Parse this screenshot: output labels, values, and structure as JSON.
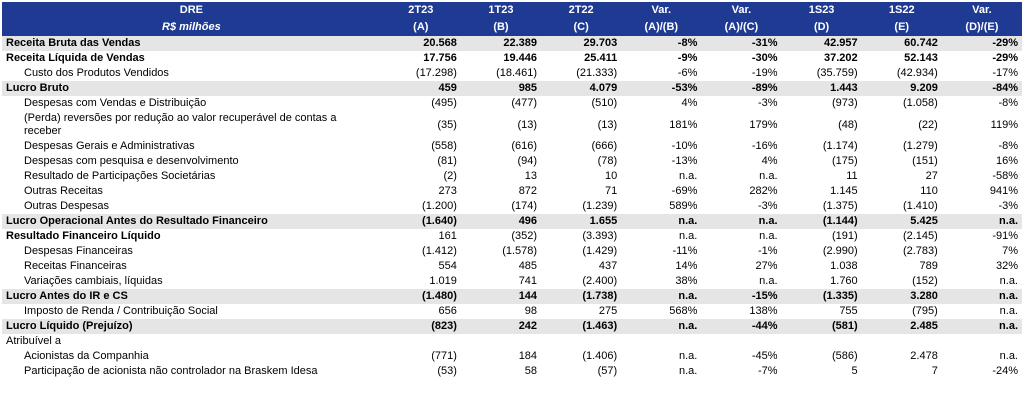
{
  "header": {
    "row1": [
      "DRE",
      "2T23",
      "1T23",
      "2T22",
      "Var.",
      "Var.",
      "1S23",
      "1S22",
      "Var."
    ],
    "row2": [
      "R$ milhões",
      "(A)",
      "(B)",
      "(C)",
      "(A)/(B)",
      "(A)/(C)",
      "(D)",
      "(E)",
      "(D)/(E)"
    ]
  },
  "rows": [
    {
      "label": "Receita Bruta das Vendas",
      "v": [
        "20.568",
        "22.389",
        "29.703",
        "-8%",
        "-31%",
        "42.957",
        "60.742",
        "-29%"
      ]
    },
    {
      "label": "Receita Líquida de Vendas",
      "v": [
        "17.756",
        "19.446",
        "25.411",
        "-9%",
        "-30%",
        "37.202",
        "52.143",
        "-29%"
      ]
    },
    {
      "label": "Custo dos Produtos Vendidos",
      "v": [
        "(17.298)",
        "(18.461)",
        "(21.333)",
        "-6%",
        "-19%",
        "(35.759)",
        "(42.934)",
        "-17%"
      ]
    },
    {
      "label": "Lucro Bruto",
      "v": [
        "459",
        "985",
        "4.079",
        "-53%",
        "-89%",
        "1.443",
        "9.209",
        "-84%"
      ]
    },
    {
      "label": "Despesas com Vendas e Distribuição",
      "v": [
        "(495)",
        "(477)",
        "(510)",
        "4%",
        "-3%",
        "(973)",
        "(1.058)",
        "-8%"
      ]
    },
    {
      "label": "(Perda) reversões por redução ao valor recuperável de contas a receber",
      "v": [
        "(35)",
        "(13)",
        "(13)",
        "181%",
        "179%",
        "(48)",
        "(22)",
        "119%"
      ]
    },
    {
      "label": "Despesas Gerais e Administrativas",
      "v": [
        "(558)",
        "(616)",
        "(666)",
        "-10%",
        "-16%",
        "(1.174)",
        "(1.279)",
        "-8%"
      ]
    },
    {
      "label": "Despesas com pesquisa e desenvolvimento",
      "v": [
        "(81)",
        "(94)",
        "(78)",
        "-13%",
        "4%",
        "(175)",
        "(151)",
        "16%"
      ]
    },
    {
      "label": "Resultado de Participações Societárias",
      "v": [
        "(2)",
        "13",
        "10",
        "n.a.",
        "n.a.",
        "11",
        "27",
        "-58%"
      ]
    },
    {
      "label": "Outras Receitas",
      "v": [
        "273",
        "872",
        "71",
        "-69%",
        "282%",
        "1.145",
        "110",
        "941%"
      ]
    },
    {
      "label": "Outras Despesas",
      "v": [
        "(1.200)",
        "(174)",
        "(1.239)",
        "589%",
        "-3%",
        "(1.375)",
        "(1.410)",
        "-3%"
      ]
    },
    {
      "label": "Lucro Operacional Antes do Resultado Financeiro",
      "v": [
        "(1.640)",
        "496",
        "1.655",
        "n.a.",
        "n.a.",
        "(1.144)",
        "5.425",
        "n.a."
      ]
    },
    {
      "label": "Resultado Financeiro Líquido",
      "v": [
        "161",
        "(352)",
        "(3.393)",
        "n.a.",
        "n.a.",
        "(191)",
        "(2.145)",
        "-91%"
      ]
    },
    {
      "label": "Despesas Financeiras",
      "v": [
        "(1.412)",
        "(1.578)",
        "(1.429)",
        "-11%",
        "-1%",
        "(2.990)",
        "(2.783)",
        "7%"
      ]
    },
    {
      "label": "Receitas Financeiras",
      "v": [
        "554",
        "485",
        "437",
        "14%",
        "27%",
        "1.038",
        "789",
        "32%"
      ]
    },
    {
      "label": "Variações cambiais, líquidas",
      "v": [
        "1.019",
        "741",
        "(2.400)",
        "38%",
        "n.a.",
        "1.760",
        "(152)",
        "n.a."
      ]
    },
    {
      "label": "Lucro Antes do IR e CS",
      "v": [
        "(1.480)",
        "144",
        "(1.738)",
        "n.a.",
        "-15%",
        "(1.335)",
        "3.280",
        "n.a."
      ]
    },
    {
      "label": "Imposto de Renda / Contribuição Social",
      "v": [
        "656",
        "98",
        "275",
        "568%",
        "138%",
        "755",
        "(795)",
        "n.a."
      ]
    },
    {
      "label": "Lucro Líquido (Prejuízo)",
      "v": [
        "(823)",
        "242",
        "(1.463)",
        "n.a.",
        "-44%",
        "(581)",
        "2.485",
        "n.a."
      ]
    },
    {
      "label": "Atribuível a",
      "v": [
        "",
        "",
        "",
        "",
        "",
        "",
        "",
        ""
      ]
    },
    {
      "label": "Acionistas da Companhia",
      "v": [
        "(771)",
        "184",
        "(1.406)",
        "n.a.",
        "-45%",
        "(586)",
        "2.478",
        "n.a."
      ]
    },
    {
      "label": "Participação de acionista não controlador na Braskem Idesa",
      "v": [
        "(53)",
        "58",
        "(57)",
        "n.a.",
        "-7%",
        "5",
        "7",
        "-24%"
      ]
    }
  ]
}
